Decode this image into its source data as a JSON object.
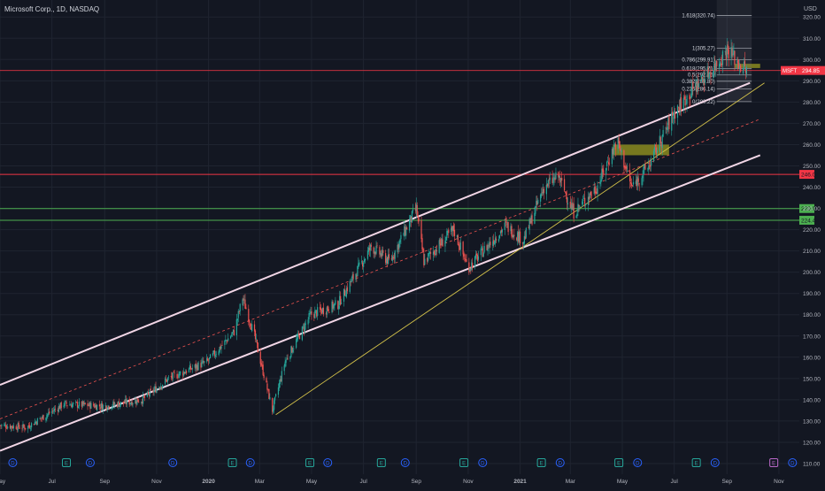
{
  "header": {
    "symbol_title": "Microsoft Corp., 1D, NASDAQ"
  },
  "price_axis": {
    "currency": "USD",
    "ticks": [
      110,
      120,
      130,
      140,
      150,
      160,
      170,
      180,
      190,
      200,
      210,
      220,
      230,
      240,
      250,
      260,
      270,
      280,
      290,
      300,
      310,
      320
    ]
  },
  "time_axis": {
    "labels": [
      {
        "label": "May",
        "bold": false
      },
      {
        "label": "Jul",
        "bold": false
      },
      {
        "label": "Sep",
        "bold": false
      },
      {
        "label": "Nov",
        "bold": false
      },
      {
        "label": "2020",
        "bold": true
      },
      {
        "label": "Mar",
        "bold": false
      },
      {
        "label": "May",
        "bold": false
      },
      {
        "label": "Jul",
        "bold": false
      },
      {
        "label": "Sep",
        "bold": false
      },
      {
        "label": "Nov",
        "bold": false
      },
      {
        "label": "2021",
        "bold": true
      },
      {
        "label": "Mar",
        "bold": false
      },
      {
        "label": "May",
        "bold": false
      },
      {
        "label": "Jul",
        "bold": false
      },
      {
        "label": "Sep",
        "bold": false
      },
      {
        "label": "Nov",
        "bold": false
      }
    ]
  },
  "colors": {
    "background": "#131722",
    "grid": "#1f2430",
    "axis_text": "#b2b5be",
    "candle_up": "#26a69a",
    "candle_down": "#ef5350",
    "channel_lines": "#f2d6e6",
    "trendline": "#d4c24a",
    "current_price": "#f23645",
    "resistance": "#f23645",
    "support": "#4caf50",
    "zone": "#8a8a1f"
  },
  "chart_data": {
    "type": "candlestick",
    "symbol": "MSFT",
    "last_price": 294.85,
    "x_range": [
      "2019-05-01",
      "2021-11-25"
    ],
    "ylim": [
      105,
      328
    ],
    "grid": true,
    "price_waypoints": [
      {
        "date": "2019-05-01",
        "price": 128
      },
      {
        "date": "2019-06-01",
        "price": 127
      },
      {
        "date": "2019-07-15",
        "price": 138
      },
      {
        "date": "2019-09-01",
        "price": 137
      },
      {
        "date": "2019-10-15",
        "price": 140
      },
      {
        "date": "2019-11-15",
        "price": 150
      },
      {
        "date": "2019-12-31",
        "price": 158
      },
      {
        "date": "2020-01-31",
        "price": 172
      },
      {
        "date": "2020-02-10",
        "price": 188
      },
      {
        "date": "2020-02-24",
        "price": 170
      },
      {
        "date": "2020-03-16",
        "price": 135
      },
      {
        "date": "2020-03-31",
        "price": 158
      },
      {
        "date": "2020-04-30",
        "price": 180
      },
      {
        "date": "2020-06-01",
        "price": 185
      },
      {
        "date": "2020-07-10",
        "price": 212
      },
      {
        "date": "2020-08-01",
        "price": 205
      },
      {
        "date": "2020-09-01",
        "price": 230
      },
      {
        "date": "2020-09-10",
        "price": 205
      },
      {
        "date": "2020-10-15",
        "price": 220
      },
      {
        "date": "2020-11-01",
        "price": 202
      },
      {
        "date": "2020-12-15",
        "price": 222
      },
      {
        "date": "2021-01-05",
        "price": 215
      },
      {
        "date": "2021-01-29",
        "price": 240
      },
      {
        "date": "2021-02-15",
        "price": 245
      },
      {
        "date": "2021-03-05",
        "price": 228
      },
      {
        "date": "2021-04-01",
        "price": 240
      },
      {
        "date": "2021-04-25",
        "price": 262
      },
      {
        "date": "2021-05-12",
        "price": 240
      },
      {
        "date": "2021-06-01",
        "price": 250
      },
      {
        "date": "2021-07-01",
        "price": 275
      },
      {
        "date": "2021-07-25",
        "price": 287
      },
      {
        "date": "2021-08-20",
        "price": 298
      },
      {
        "date": "2021-09-02",
        "price": 305
      },
      {
        "date": "2021-09-15",
        "price": 298
      },
      {
        "date": "2021-09-24",
        "price": 294.85
      }
    ],
    "horizontal_levels": [
      {
        "price": 246.01,
        "label": "246.01",
        "color": "#f23645"
      },
      {
        "price": 229.92,
        "label": "229.92",
        "color": "#4caf50"
      },
      {
        "price": 224.43,
        "label": "224.43",
        "color": "#4caf50"
      }
    ],
    "current_price_line": {
      "price": 294.85,
      "label": "294.85",
      "tag": "MSFT"
    },
    "channel": {
      "upper": [
        {
          "date": "2019-05-01",
          "price": 147
        },
        {
          "date": "2021-09-28",
          "price": 289
        }
      ],
      "lower": [
        {
          "date": "2019-05-01",
          "price": 116
        },
        {
          "date": "2021-10-10",
          "price": 255
        }
      ],
      "mid": [
        {
          "date": "2019-05-01",
          "price": 131
        },
        {
          "date": "2021-10-10",
          "price": 272
        }
      ]
    },
    "trendline": [
      {
        "date": "2020-03-20",
        "price": 133
      },
      {
        "date": "2021-10-15",
        "price": 289
      }
    ],
    "zones": [
      {
        "date_from": "2021-04-20",
        "date_to": "2021-06-25",
        "price_from": 255,
        "price_to": 260
      },
      {
        "date_from": "2021-09-10",
        "date_to": "2021-10-10",
        "price_from": 296,
        "price_to": 298
      }
    ],
    "fibonacci": {
      "date_from": "2021-08-20",
      "date_to": "2021-09-30",
      "levels": [
        {
          "label": "1.618(320.74)",
          "price": 320.74
        },
        {
          "label": "1(305.27)",
          "price": 305.27
        },
        {
          "label": "0.786(299.91)",
          "price": 299.91
        },
        {
          "label": "0.618(295.71)",
          "price": 295.71
        },
        {
          "label": "0.5(292.75)",
          "price": 292.75
        },
        {
          "label": "0.382(289.80)",
          "price": 289.8
        },
        {
          "label": "0.236(286.14)",
          "price": 286.14
        },
        {
          "label": "0(280.22)",
          "price": 280.22
        }
      ]
    },
    "events": [
      {
        "date": "2019-05-16",
        "type": "D"
      },
      {
        "date": "2019-07-18",
        "type": "E"
      },
      {
        "date": "2019-08-15",
        "type": "D"
      },
      {
        "date": "2019-11-20",
        "type": "D"
      },
      {
        "date": "2020-01-29",
        "type": "E"
      },
      {
        "date": "2020-02-19",
        "type": "D"
      },
      {
        "date": "2020-04-29",
        "type": "E"
      },
      {
        "date": "2020-05-20",
        "type": "D"
      },
      {
        "date": "2020-07-22",
        "type": "E"
      },
      {
        "date": "2020-08-19",
        "type": "D"
      },
      {
        "date": "2020-10-27",
        "type": "E"
      },
      {
        "date": "2020-11-18",
        "type": "D"
      },
      {
        "date": "2021-01-26",
        "type": "E"
      },
      {
        "date": "2021-02-17",
        "type": "D"
      },
      {
        "date": "2021-04-27",
        "type": "E"
      },
      {
        "date": "2021-05-19",
        "type": "D"
      },
      {
        "date": "2021-07-27",
        "type": "E"
      },
      {
        "date": "2021-08-18",
        "type": "D"
      },
      {
        "date": "2021-10-26",
        "type": "E",
        "upcoming": true
      },
      {
        "date": "2021-11-17",
        "type": "D"
      }
    ]
  }
}
